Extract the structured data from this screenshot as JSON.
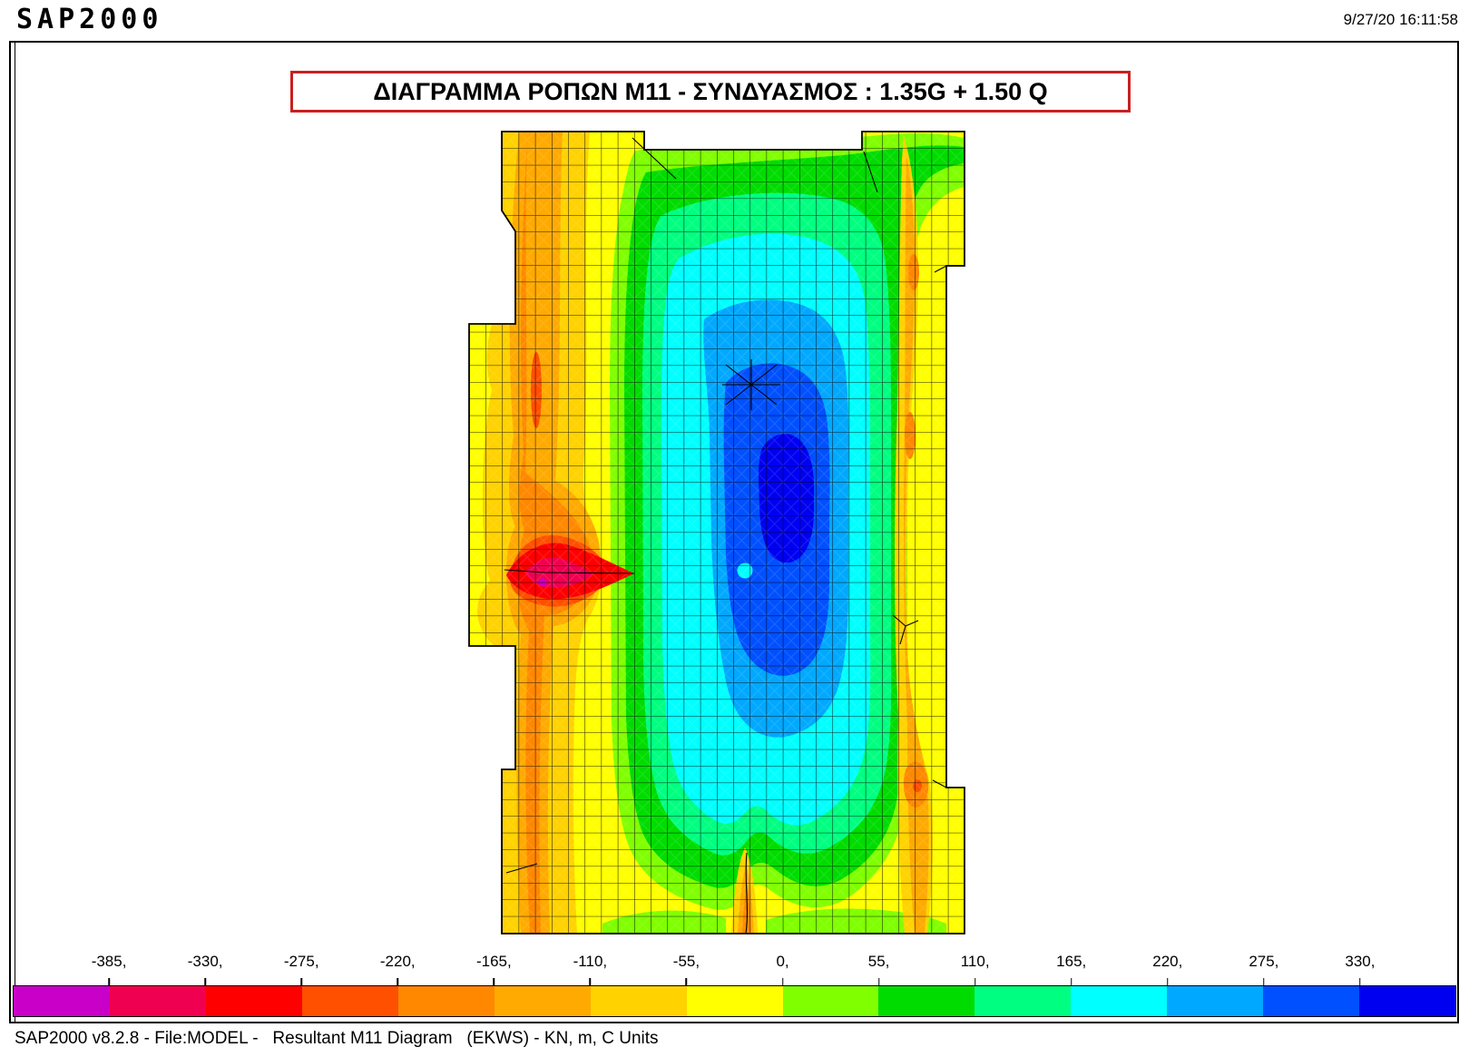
{
  "header": {
    "logo_text": "SAP2000",
    "timestamp": "9/27/20 16:11:58"
  },
  "title_banner": {
    "text": "ΔΙΑΓΡΑΜΜΑ ΡΟΠΩΝ M11 - ΣΥΝΔΥΑΣΜΟΣ : 1.35G + 1.50 Q",
    "border_color": "#c82020"
  },
  "status_bar": {
    "text": "SAP2000 v8.2.8 - File:MODEL -   Resultant M11 Diagram   (EKWS) - KN, m, C Units"
  },
  "chart_data": {
    "type": "heatmap",
    "title": "ΔΙΑΓΡΑΜΜΑ ΡΟΠΩΝ M11 - ΣΥΝΔΥΑΣΜΟΣ : 1.35G + 1.50 Q",
    "quantity": "Resultant M11 Diagram",
    "load_combination": "1.35G + 1.50 Q",
    "units": "KN, m, C",
    "legend": {
      "position": "bottom",
      "tick_labels": [
        "-385,",
        "-330,",
        "-275,",
        "-220,",
        "-165,",
        "-110,",
        "-55,",
        "0,",
        "55,",
        "110,",
        "165,",
        "220,",
        "275,",
        "330,"
      ],
      "tick_values": [
        -385,
        -330,
        -275,
        -220,
        -165,
        -110,
        -55,
        0,
        55,
        110,
        165,
        220,
        275,
        330
      ],
      "band_colors": [
        "#c800c8",
        "#f00050",
        "#ff0000",
        "#ff5000",
        "#ff8800",
        "#ffaa00",
        "#ffd200",
        "#ffff00",
        "#80ff00",
        "#00dc00",
        "#00ff80",
        "#00ffff",
        "#00a8ff",
        "#0050ff",
        "#0000f0"
      ]
    },
    "regions": {
      "negative_peak": "vertical support band at left of slab, red core with magenta spot (≈ -385)",
      "positive_peak": "center-right span, dark blue core (> 330)",
      "mesh": "square shell-element mesh over entire slab"
    }
  }
}
